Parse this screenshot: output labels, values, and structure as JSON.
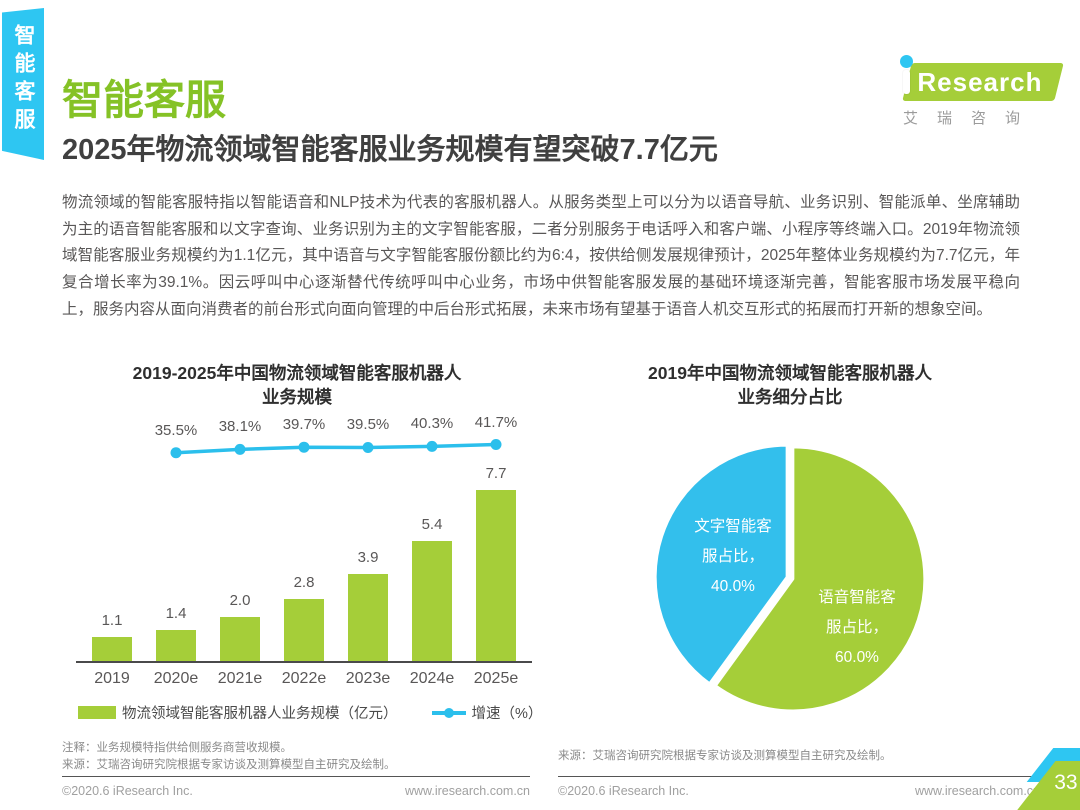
{
  "sidebar": {
    "tab_label": "智能客服"
  },
  "logo": {
    "i": "i",
    "word": "Research",
    "chinese": "艾瑞咨询"
  },
  "header": {
    "title": "智能客服",
    "subtitle": "2025年物流领域智能客服业务规模有望突破7.7亿元"
  },
  "body": {
    "paragraph": "物流领域的智能客服特指以智能语音和NLP技术为代表的客服机器人。从服务类型上可以分为以语音导航、业务识别、智能派单、坐席辅助为主的语音智能客服和以文字查询、业务识别为主的文字智能客服，二者分别服务于电话呼入和客户端、小程序等终端入口。2019年物流领域智能客服业务规模约为1.1亿元，其中语音与文字智能客服份额比约为6:4，按供给侧发展规律预计，2025年整体业务规模约为7.7亿元，年复合增长率为39.1%。因云呼叫中心逐渐替代传统呼叫中心业务，市场中供智能客服发展的基础环境逐渐完善，智能客服市场发展平稳向上，服务内容从面向消费者的前台形式向面向管理的中后台形式拓展，未来市场有望基于语音人机交互形式的拓展而打开新的想象空间。"
  },
  "chart_data": [
    {
      "type": "bar",
      "title": "2019-2025年中国物流领域智能客服机器人业务规模",
      "title_lines": [
        "2019-2025年中国物流领域智能客服机器人",
        "业务规模"
      ],
      "categories": [
        "2019",
        "2020e",
        "2021e",
        "2022e",
        "2023e",
        "2024e",
        "2025e"
      ],
      "series": [
        {
          "name": "物流领域智能客服机器人业务规模（亿元）",
          "kind": "bar",
          "values": [
            1.1,
            1.4,
            2.0,
            2.8,
            3.9,
            5.4,
            7.7
          ],
          "color": "#a5ce39"
        },
        {
          "name": "增速（%）",
          "kind": "line",
          "values": [
            null,
            35.5,
            38.1,
            39.7,
            39.5,
            40.3,
            41.7
          ],
          "color": "#2bbfec"
        }
      ],
      "ylim": [
        0,
        8
      ],
      "grid": false,
      "legend_position": "bottom"
    },
    {
      "type": "pie",
      "title": "2019年中国物流领域智能客服机器人业务细分占比",
      "title_lines": [
        "2019年中国物流领域智能客服机器人",
        "业务细分占比"
      ],
      "slices": [
        {
          "label": "语音智能客服占比",
          "value": 60.0,
          "color": "#a5ce39",
          "label_lines": [
            "语音智能客",
            "服占比，",
            "60.0%"
          ]
        },
        {
          "label": "文字智能客服占比",
          "value": 40.0,
          "color": "#33bfec",
          "label_lines": [
            "文字智能客",
            "服占比，",
            "40.0%"
          ]
        }
      ],
      "start_angle": "top",
      "direction": "clockwise"
    }
  ],
  "footnotes": {
    "left_note": "注释：业务规模特指供给侧服务商营收规模。",
    "left_source": "来源：艾瑞咨询研究院根据专家访谈及测算模型自主研究及绘制。",
    "right_source": "来源：艾瑞咨询研究院根据专家访谈及测算模型自主研究及绘制。"
  },
  "footer": {
    "copyright": "©2020.6 iResearch Inc.",
    "website": "www.iresearch.com.cn",
    "page_number": "33"
  },
  "colors": {
    "brand_green": "#a5ce39",
    "title_green": "#85c226",
    "brand_cyan": "#2ec6f2",
    "line_cyan": "#2bbfec",
    "dark_text": "#404040",
    "body_text": "#595757"
  }
}
